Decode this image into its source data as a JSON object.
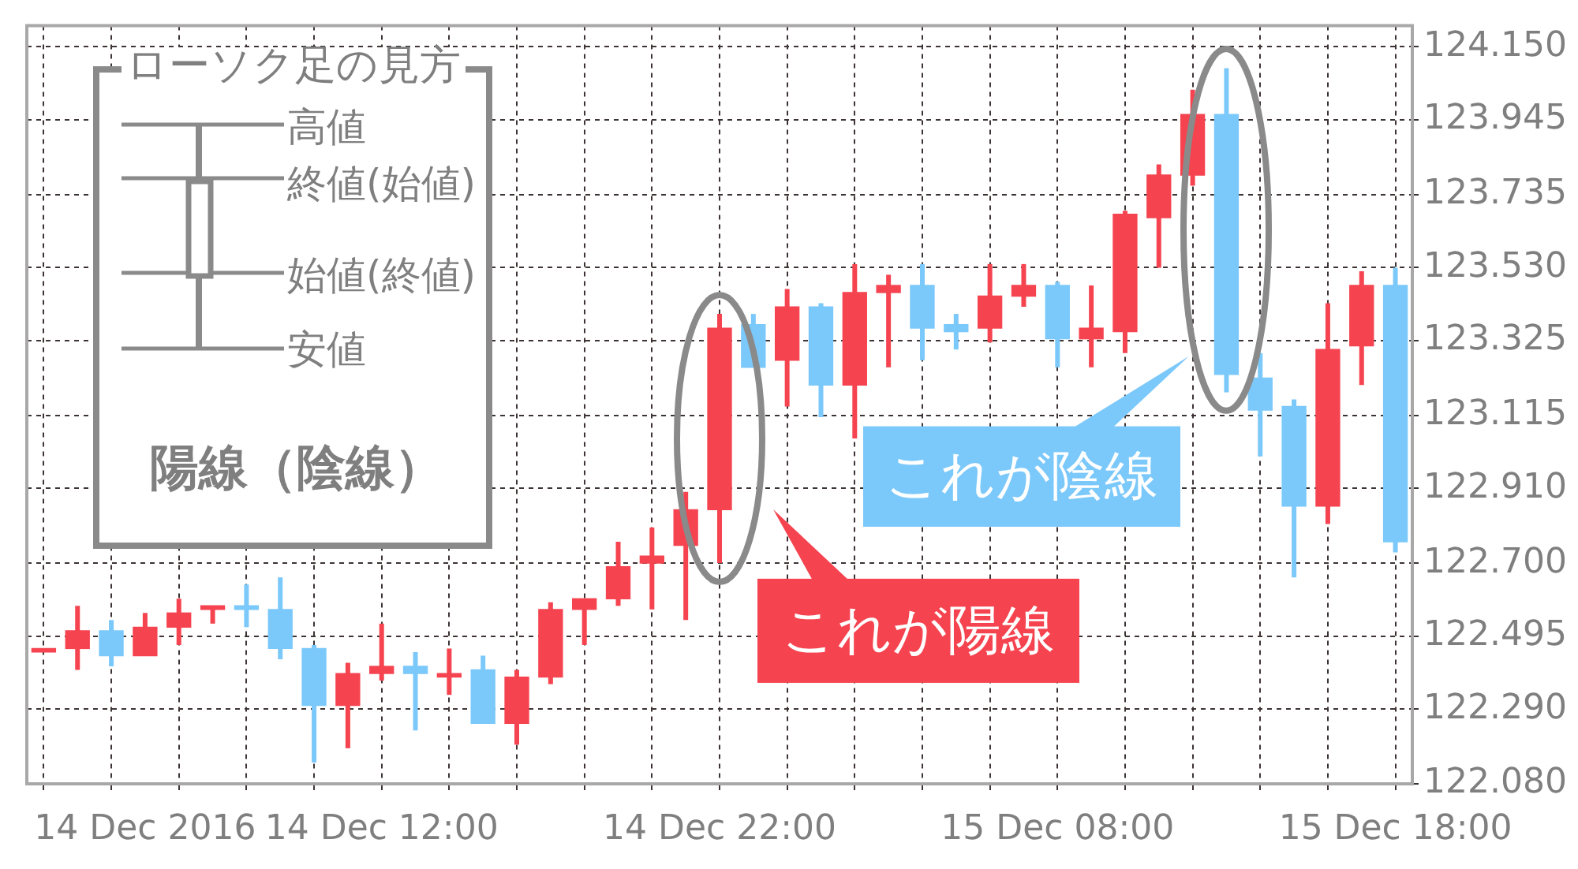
{
  "chart_data": {
    "type": "candlestick",
    "categories": [
      null,
      null,
      null,
      "14 Dec 2016",
      null,
      null,
      null,
      null,
      null,
      null,
      "14 Dec 12:00",
      null,
      null,
      null,
      null,
      null,
      null,
      null,
      null,
      null,
      "14 Dec 22:00",
      null,
      null,
      null,
      null,
      null,
      null,
      null,
      null,
      null,
      "15 Dec 08:00",
      null,
      null,
      null,
      null,
      null,
      null,
      null,
      null,
      null,
      "15 Dec 18:00"
    ],
    "ohlc": [
      [
        122.45,
        122.46,
        122.45,
        122.46
      ],
      [
        122.46,
        122.58,
        122.4,
        122.51
      ],
      [
        122.51,
        122.54,
        122.41,
        122.44
      ],
      [
        122.44,
        122.56,
        122.44,
        122.52
      ],
      [
        122.52,
        122.6,
        122.47,
        122.56
      ],
      [
        122.57,
        122.58,
        122.53,
        122.58
      ],
      [
        122.58,
        122.64,
        122.52,
        122.57
      ],
      [
        122.57,
        122.66,
        122.43,
        122.46
      ],
      [
        122.46,
        122.47,
        122.14,
        122.3
      ],
      [
        122.3,
        122.42,
        122.18,
        122.39
      ],
      [
        122.39,
        122.53,
        122.37,
        122.41
      ],
      [
        122.41,
        122.45,
        122.23,
        122.39
      ],
      [
        122.38,
        122.46,
        122.33,
        122.39
      ],
      [
        122.4,
        122.44,
        122.25,
        122.25
      ],
      [
        122.25,
        122.4,
        122.19,
        122.38
      ],
      [
        122.38,
        122.59,
        122.36,
        122.57
      ],
      [
        122.57,
        122.6,
        122.47,
        122.6
      ],
      [
        122.6,
        122.76,
        122.58,
        122.69
      ],
      [
        122.7,
        122.8,
        122.57,
        122.72
      ],
      [
        122.75,
        122.9,
        122.54,
        122.85
      ],
      [
        122.85,
        123.4,
        122.7,
        123.36
      ],
      [
        123.37,
        123.4,
        123.25,
        123.25
      ],
      [
        123.27,
        123.47,
        123.14,
        123.42
      ],
      [
        123.42,
        123.43,
        123.11,
        123.2
      ],
      [
        123.2,
        123.54,
        123.05,
        123.46
      ],
      [
        123.46,
        123.51,
        123.25,
        123.48
      ],
      [
        123.48,
        123.54,
        123.27,
        123.36
      ],
      [
        123.37,
        123.4,
        123.3,
        123.35
      ],
      [
        123.36,
        123.54,
        123.32,
        123.45
      ],
      [
        123.45,
        123.54,
        123.42,
        123.48
      ],
      [
        123.48,
        123.49,
        123.25,
        123.33
      ],
      [
        123.33,
        123.48,
        123.25,
        123.36
      ],
      [
        123.35,
        123.69,
        123.29,
        123.68
      ],
      [
        123.67,
        123.82,
        123.53,
        123.79
      ],
      [
        123.79,
        124.03,
        123.76,
        123.96
      ],
      [
        123.96,
        124.09,
        123.18,
        123.23
      ],
      [
        123.22,
        123.29,
        123.0,
        123.13
      ],
      [
        123.14,
        123.16,
        122.66,
        122.86
      ],
      [
        122.86,
        123.43,
        122.81,
        123.3
      ],
      [
        123.31,
        123.52,
        123.2,
        123.48
      ],
      [
        123.48,
        123.53,
        122.73,
        122.76
      ]
    ],
    "colors": [
      "#f5434f",
      "#f5434f",
      "#7bc8fa",
      "#f5434f",
      "#f5434f",
      "#f5434f",
      "#7bc8fa",
      "#7bc8fa",
      "#7bc8fa",
      "#f5434f",
      "#f5434f",
      "#7bc8fa",
      "#f5434f",
      "#7bc8fa",
      "#f5434f",
      "#f5434f",
      "#f5434f",
      "#f5434f",
      "#f5434f",
      "#f5434f",
      "#f5434f",
      "#7bc8fa",
      "#f5434f",
      "#7bc8fa",
      "#f5434f",
      "#f5434f",
      "#7bc8fa",
      "#7bc8fa",
      "#f5434f",
      "#f5434f",
      "#7bc8fa",
      "#f5434f",
      "#f5434f",
      "#f5434f",
      "#f5434f",
      "#7bc8fa",
      "#7bc8fa",
      "#7bc8fa",
      "#f5434f",
      "#f5434f",
      "#7bc8fa"
    ],
    "ylim": [
      122.08,
      124.21
    ],
    "yticks": [
      {
        "value": 122.08,
        "label": "122.080"
      },
      {
        "value": 122.29,
        "label": "122.290"
      },
      {
        "value": 122.495,
        "label": "122.495"
      },
      {
        "value": 122.7,
        "label": "122.700"
      },
      {
        "value": 122.91,
        "label": "122.910"
      },
      {
        "value": 123.115,
        "label": "123.115"
      },
      {
        "value": 123.325,
        "label": "123.325"
      },
      {
        "value": 123.53,
        "label": "123.530"
      },
      {
        "value": 123.735,
        "label": "123.735"
      },
      {
        "value": 123.945,
        "label": "123.945"
      },
      {
        "value": 124.15,
        "label": "124.150"
      }
    ],
    "grid": true,
    "annotations": [
      "ローソク足の見方",
      "高値",
      "終値(始値)",
      "始値(終値)",
      "安値",
      "陽線（陰線）",
      "これが陽線",
      "これが陰線"
    ]
  }
}
